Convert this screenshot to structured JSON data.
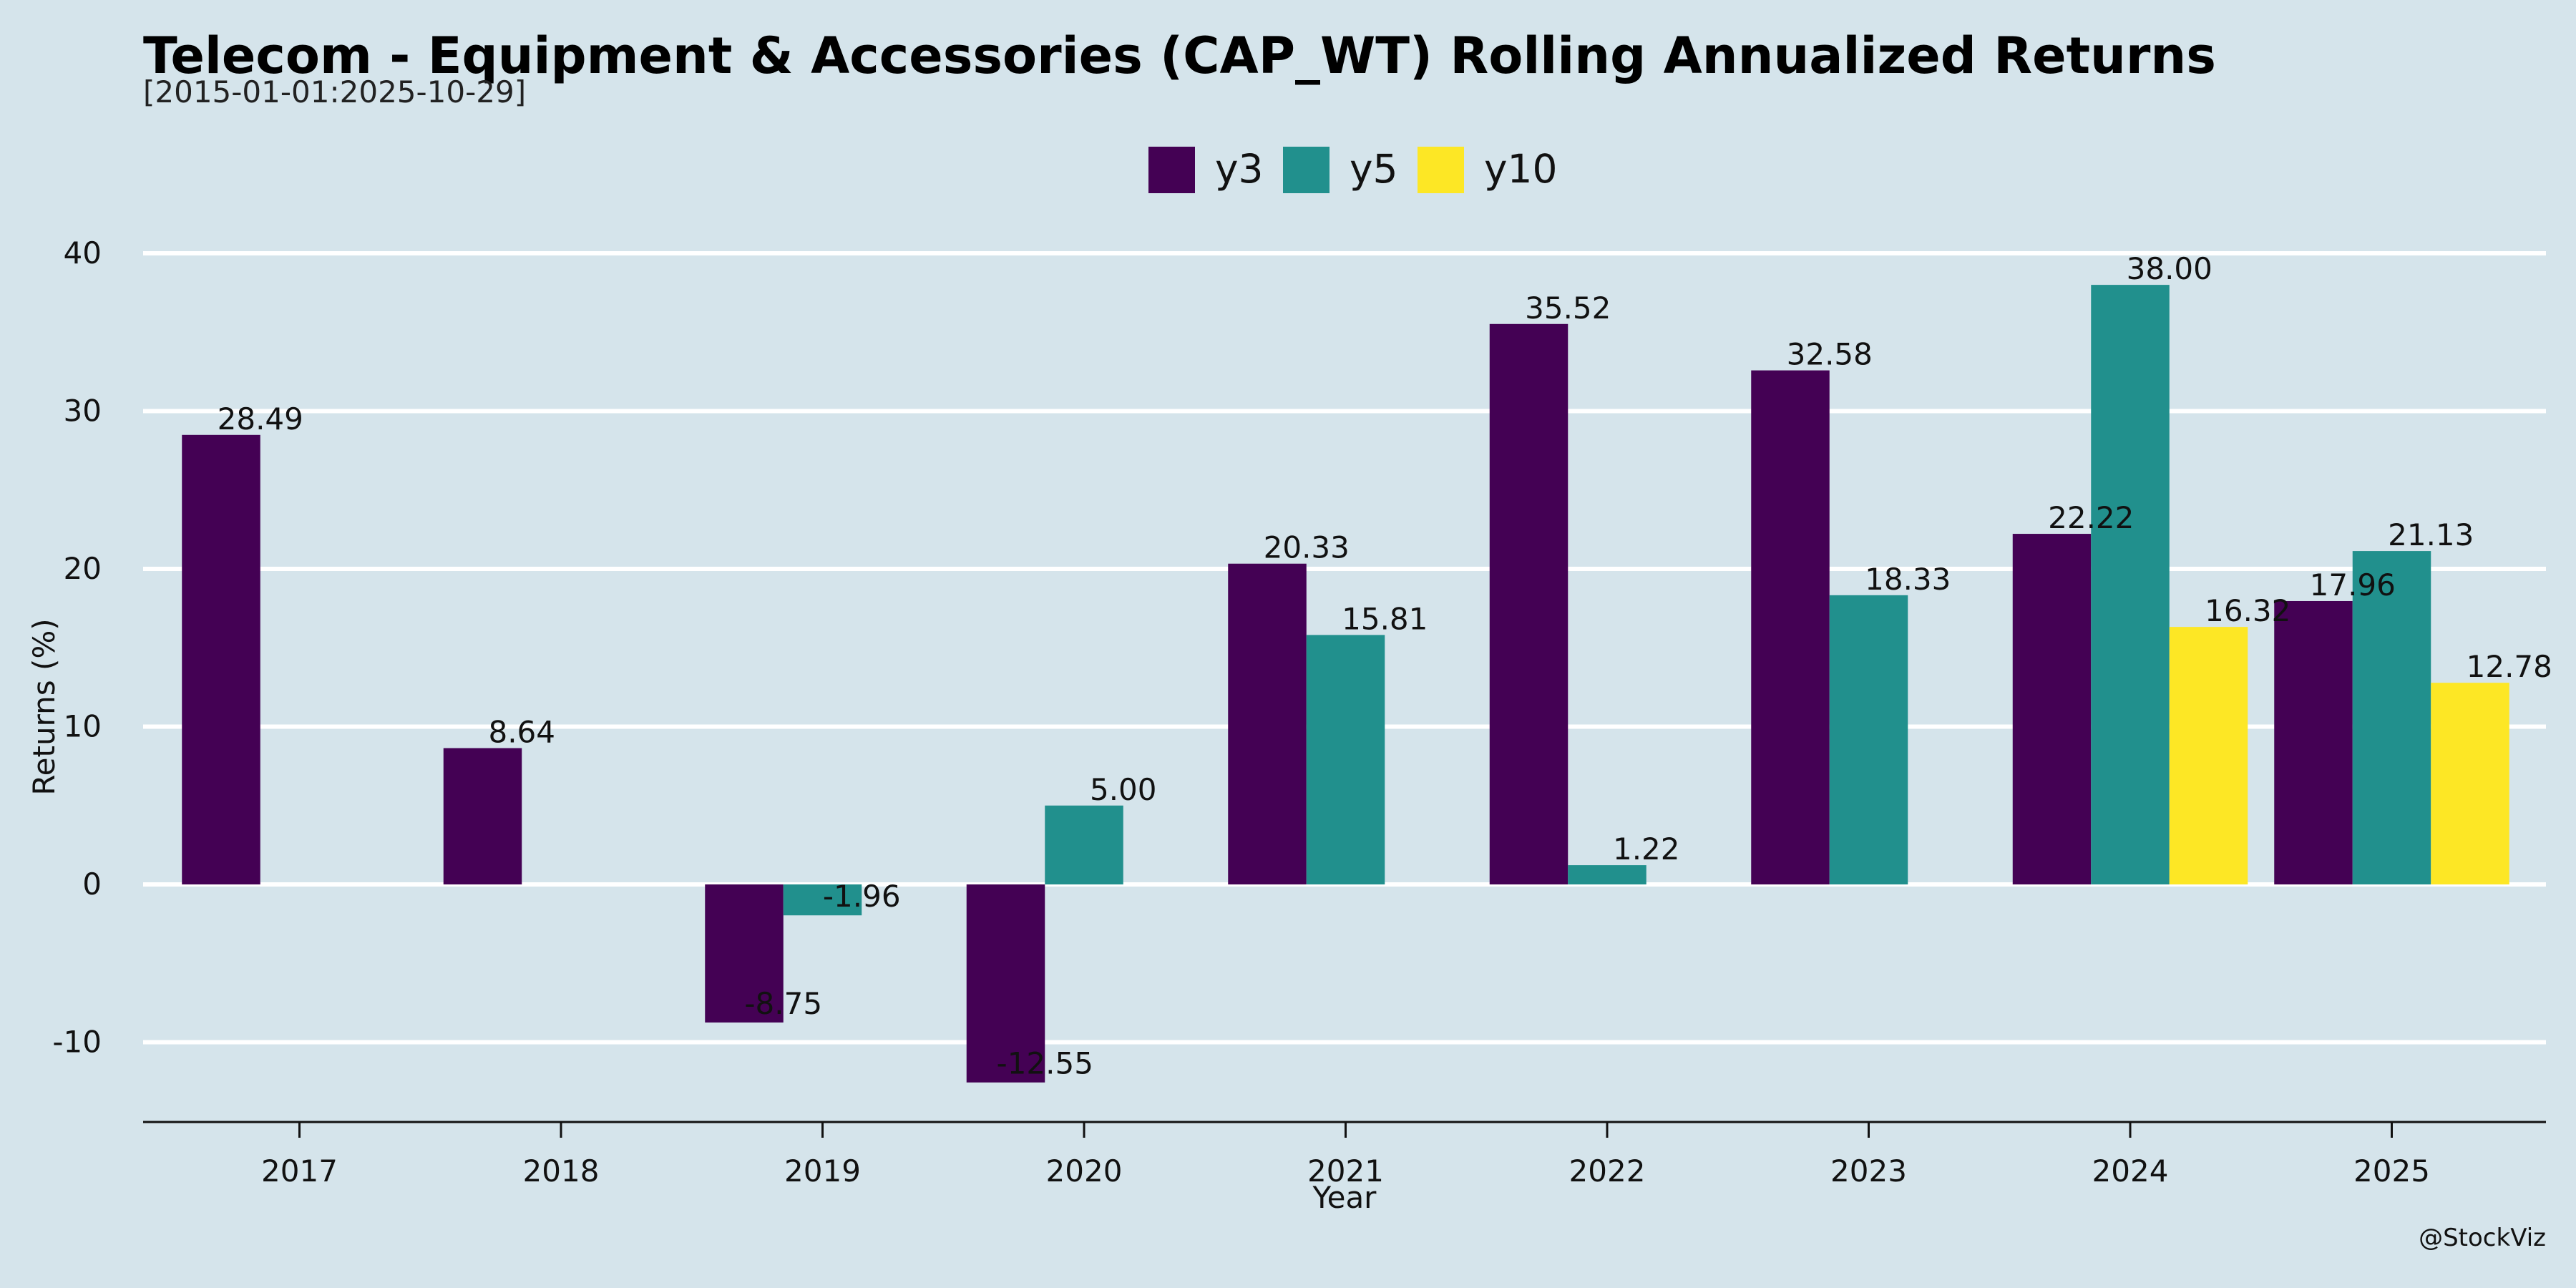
{
  "chart_data": {
    "type": "bar",
    "title": "Telecom - Equipment & Accessories (CAP_WT) Rolling Annualized Returns",
    "subtitle": "[2015-01-01:2025-10-29]",
    "xlabel": "Year",
    "ylabel": "Returns (%)",
    "ylim": [
      -15,
      42
    ],
    "yticks": [
      -10,
      0,
      10,
      20,
      30,
      40
    ],
    "ytick_labels": [
      "-10",
      "0",
      "10",
      "20",
      "30",
      "40"
    ],
    "grid": "horizontal",
    "legend_position": "top-center",
    "categories": [
      "2017",
      "2018",
      "2019",
      "2020",
      "2021",
      "2022",
      "2023",
      "2024",
      "2025"
    ],
    "series": [
      {
        "name": "y3",
        "color": "#440154",
        "values": [
          28.49,
          8.64,
          -8.75,
          -12.55,
          20.33,
          35.52,
          32.58,
          22.22,
          17.96
        ],
        "labels": [
          "28.49",
          "8.64",
          "-8.75",
          "-12.55",
          "20.33",
          "35.52",
          "32.58",
          "22.22",
          "17.96"
        ]
      },
      {
        "name": "y5",
        "color": "#21908d",
        "values": [
          null,
          null,
          -1.96,
          5.0,
          15.81,
          1.22,
          18.33,
          38.0,
          21.13
        ],
        "labels": [
          null,
          null,
          "-1.96",
          "5.00",
          "15.81",
          "1.22",
          "18.33",
          "38.00",
          "21.13"
        ]
      },
      {
        "name": "y10",
        "color": "#fde725",
        "values": [
          null,
          null,
          null,
          null,
          null,
          null,
          null,
          16.32,
          12.78
        ],
        "labels": [
          null,
          null,
          null,
          null,
          null,
          null,
          null,
          "16.32",
          "12.78"
        ]
      }
    ],
    "watermark": "@StockViz"
  }
}
